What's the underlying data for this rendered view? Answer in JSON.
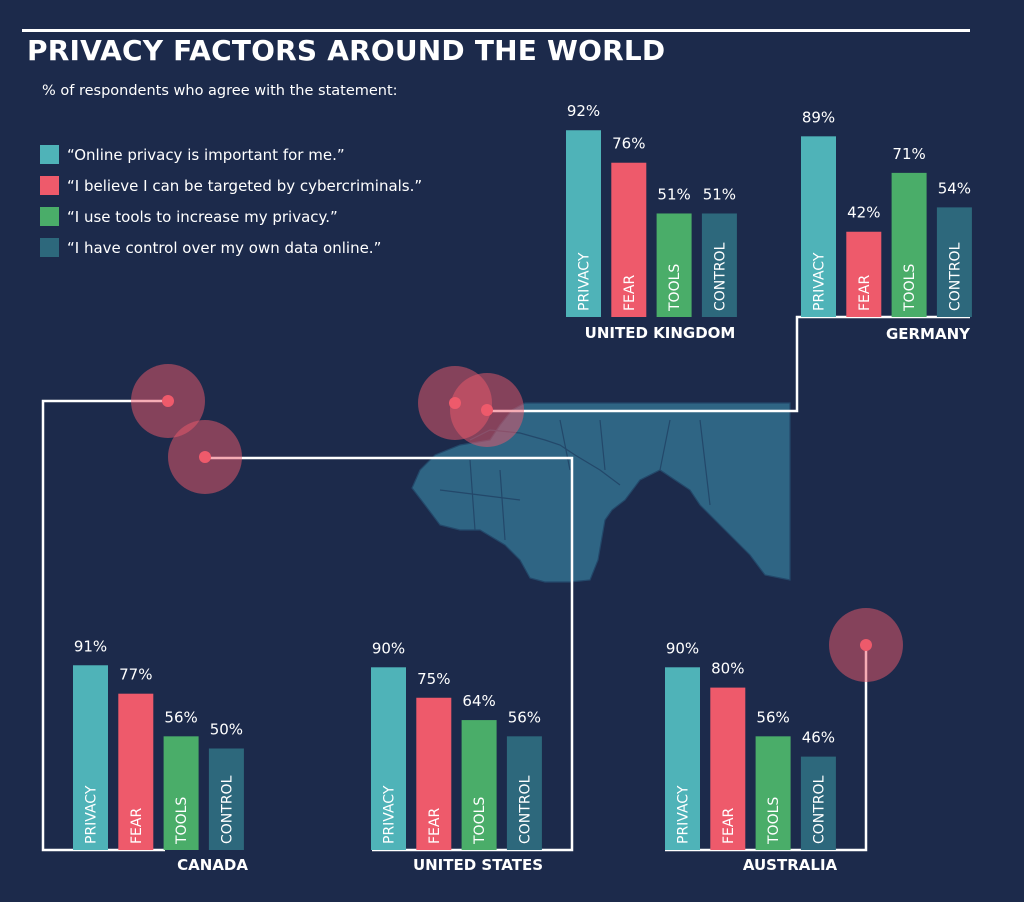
{
  "chart_data": {
    "type": "bar",
    "title": "PRIVACY FACTORS AROUND THE WORLD",
    "subtitle": "% of respondents who agree with the statement:",
    "legend": [
      {
        "key": "PRIVACY",
        "text": "“Online privacy is important for me.”",
        "color": "#4fb3b8"
      },
      {
        "key": "FEAR",
        "text": "“I believe I can be targeted by cybercriminals.”",
        "color": "#ee5a6b"
      },
      {
        "key": "TOOLS",
        "text": "“I use tools to increase my privacy.”",
        "color": "#4aad69"
      },
      {
        "key": "CONTROL",
        "text": "“I have control over my own data online.”",
        "color": "#2d687c"
      }
    ],
    "categories": [
      "PRIVACY",
      "FEAR",
      "TOOLS",
      "CONTROL"
    ],
    "groups": [
      {
        "country": "UNITED KINGDOM",
        "values": [
          92,
          76,
          51,
          51
        ]
      },
      {
        "country": "GERMANY",
        "values": [
          89,
          42,
          71,
          54
        ]
      },
      {
        "country": "CANADA",
        "values": [
          91,
          77,
          56,
          50
        ]
      },
      {
        "country": "UNITED STATES",
        "values": [
          90,
          75,
          64,
          56
        ]
      },
      {
        "country": "AUSTRALIA",
        "values": [
          90,
          80,
          56,
          46
        ]
      }
    ],
    "unit": "%",
    "colors": {
      "background": "#1c2a4b",
      "map": "#2f6584",
      "marker": "#ee5a6b",
      "line": "#ffffff"
    }
  }
}
